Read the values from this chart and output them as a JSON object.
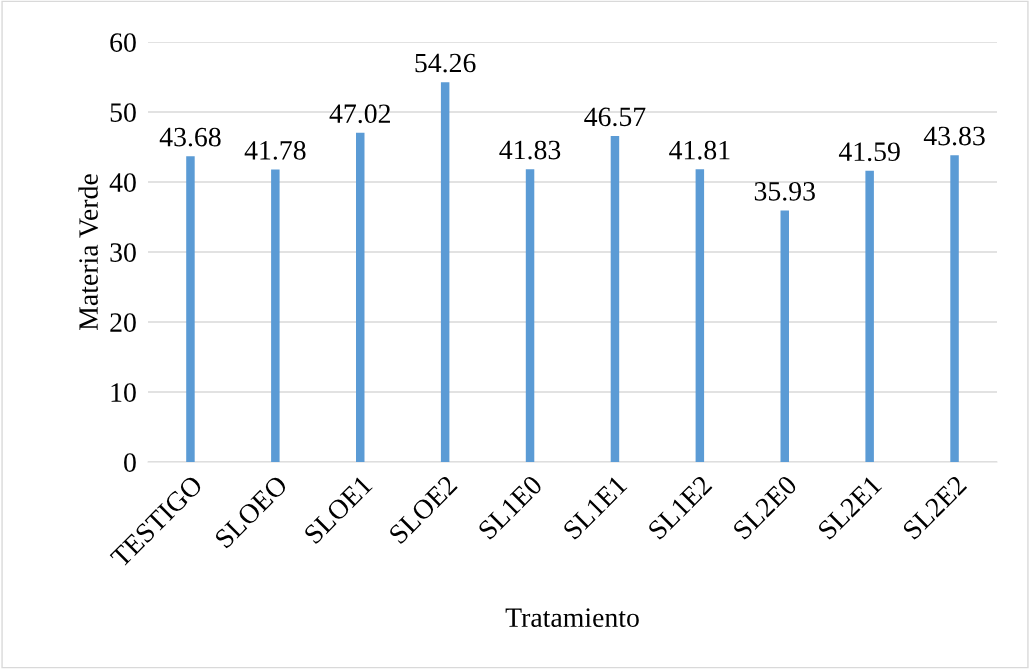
{
  "chart_data": {
    "type": "bar",
    "xlabel": "Tratamiento",
    "ylabel": "Materia Verde",
    "categories": [
      "TESTIGO",
      "SLOEO",
      "SLOE1",
      "SLOE2",
      "SL1E0",
      "SL1E1",
      "SL1E2",
      "SL2E0",
      "SL2E1",
      "SL2E2"
    ],
    "values": [
      43.68,
      41.78,
      47.02,
      54.26,
      41.83,
      46.57,
      41.81,
      35.93,
      41.59,
      43.83
    ],
    "color": "#5b9bd5",
    "ylim": [
      0,
      60
    ],
    "yticks": [
      0,
      10,
      20,
      30,
      40,
      50,
      60
    ],
    "grid": "y",
    "data_labels": true
  }
}
